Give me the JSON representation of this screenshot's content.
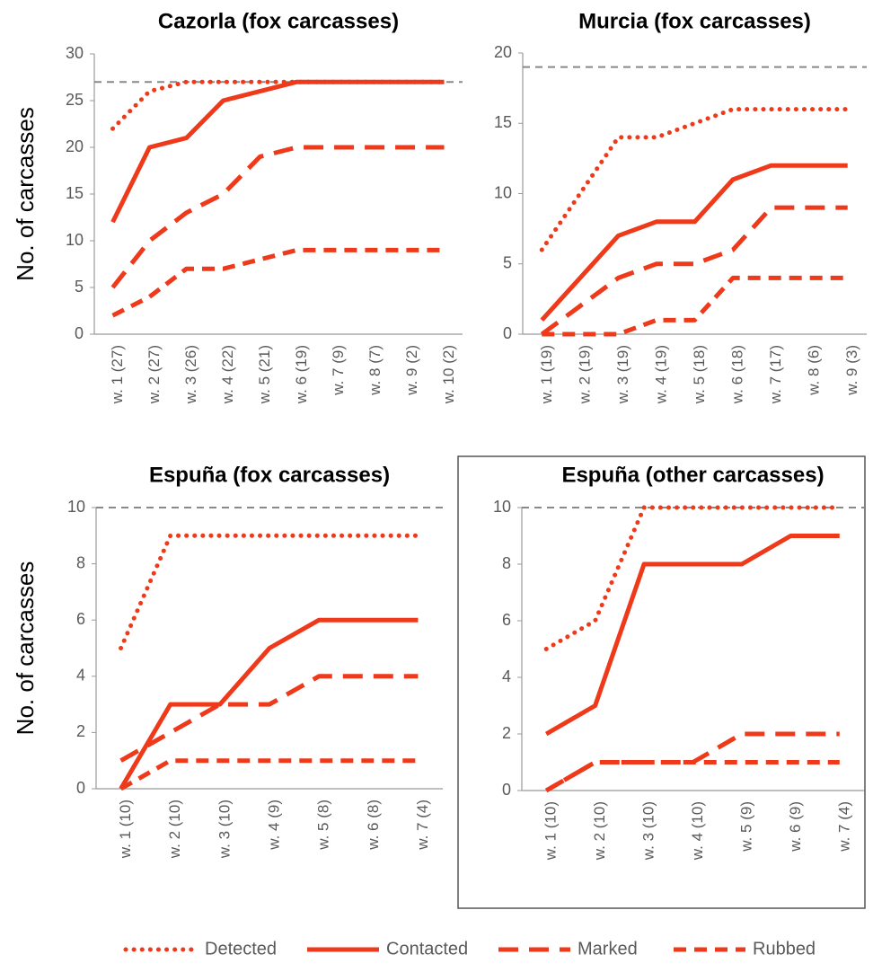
{
  "chart_data": [
    {
      "type": "line",
      "title": "Cazorla (fox carcasses)",
      "y_label": "No. of carcasses",
      "categories": [
        "w. 1  (27)",
        "w. 2 (27)",
        "w. 3 (26)",
        "w. 4 (22)",
        "w. 5 (21)",
        "w. 6 (19)",
        "w. 7 (9)",
        "w. 8 (7)",
        "w. 9 (2)",
        "w. 10 (2)"
      ],
      "ylim": [
        0,
        30
      ],
      "yticks": [
        0,
        5,
        10,
        15,
        20,
        25,
        30
      ],
      "reference_line": 27,
      "reference_color": "#888888",
      "series": [
        {
          "name": "Detected",
          "color": "#ee3a1a",
          "dash": "dotted",
          "values": [
            22,
            26,
            27,
            27,
            27,
            27,
            27,
            27,
            27,
            27
          ]
        },
        {
          "name": "Contacted",
          "color": "#ee3a1a",
          "dash": "solid",
          "values": [
            12,
            20,
            21,
            25,
            26,
            27,
            27,
            27,
            27,
            27
          ]
        },
        {
          "name": "Marked",
          "color": "#ee3a1a",
          "dash": "long-dash",
          "values": [
            5,
            10,
            13,
            15,
            19,
            20,
            20,
            20,
            20,
            20
          ]
        },
        {
          "name": "Rubbed",
          "color": "#ee3a1a",
          "dash": "dash",
          "values": [
            2,
            4,
            7,
            7,
            8,
            9,
            9,
            9,
            9,
            9
          ]
        }
      ]
    },
    {
      "type": "line",
      "title": "Murcia (fox carcasses)",
      "categories": [
        "w. 1 (19)",
        "w. 2 (19)",
        "w. 3 (19)",
        "w. 4 (19)",
        "w. 5 (18)",
        "w. 6 (18)",
        "w. 7 (17)",
        "w. 8 (6)",
        "w. 9 (3)"
      ],
      "ylim": [
        0,
        20
      ],
      "yticks": [
        0,
        5,
        10,
        15,
        20
      ],
      "reference_line": 19,
      "reference_color": "#888888",
      "series": [
        {
          "name": "Detected",
          "color": "#ee3a1a",
          "dash": "dotted",
          "values": [
            6,
            10,
            14,
            14,
            15,
            16,
            16,
            16,
            16
          ]
        },
        {
          "name": "Contacted",
          "color": "#ee3a1a",
          "dash": "solid",
          "values": [
            1,
            4,
            7,
            8,
            8,
            11,
            12,
            12,
            12
          ]
        },
        {
          "name": "Marked",
          "color": "#ee3a1a",
          "dash": "long-dash",
          "values": [
            0,
            2,
            4,
            5,
            5,
            6,
            9,
            9,
            9
          ]
        },
        {
          "name": "Rubbed",
          "color": "#ee3a1a",
          "dash": "dash",
          "values": [
            0,
            0,
            0,
            1,
            1,
            4,
            4,
            4,
            4
          ]
        }
      ]
    },
    {
      "type": "line",
      "title": "Espuña (fox carcasses)",
      "y_label": "No. of carcasses",
      "categories": [
        "w. 1 (10)",
        "w. 2 (10)",
        "w. 3 (10)",
        "w. 4 (9)",
        "w. 5 (8)",
        "w. 6 (8)",
        "w. 7 (4)"
      ],
      "ylim": [
        0,
        10
      ],
      "yticks": [
        0,
        2,
        4,
        6,
        8,
        10
      ],
      "reference_line": 10,
      "reference_color": "#888888",
      "series": [
        {
          "name": "Detected",
          "color": "#ee3a1a",
          "dash": "dotted",
          "values": [
            5,
            9,
            9,
            9,
            9,
            9,
            9
          ]
        },
        {
          "name": "Contacted",
          "color": "#ee3a1a",
          "dash": "solid",
          "values": [
            0,
            3,
            3,
            5,
            6,
            6,
            6
          ]
        },
        {
          "name": "Marked",
          "color": "#ee3a1a",
          "dash": "long-dash",
          "values": [
            1,
            2,
            3,
            3,
            4,
            4,
            4
          ]
        },
        {
          "name": "Rubbed",
          "color": "#ee3a1a",
          "dash": "dash",
          "values": [
            0,
            1,
            1,
            1,
            1,
            1,
            1
          ]
        }
      ]
    },
    {
      "type": "line",
      "title": "Espuña (other carcasses)",
      "categories": [
        "w. 1 (10)",
        "w. 2 (10)",
        "w. 3 (10)",
        "w. 4 (10)",
        "w. 5 (9)",
        "w. 6 (9)",
        "w. 7 (4)"
      ],
      "ylim": [
        0,
        10
      ],
      "yticks": [
        0,
        2,
        4,
        6,
        8,
        10
      ],
      "reference_line": 10,
      "reference_color": "#888888",
      "series": [
        {
          "name": "Detected",
          "color": "#ee3a1a",
          "dash": "dotted",
          "values": [
            5,
            6,
            10,
            10,
            10,
            10,
            10
          ]
        },
        {
          "name": "Contacted",
          "color": "#ee3a1a",
          "dash": "solid",
          "values": [
            2,
            3,
            8,
            8,
            8,
            9,
            9
          ]
        },
        {
          "name": "Marked",
          "color": "#ee3a1a",
          "dash": "long-dash",
          "values": [
            0,
            1,
            1,
            1,
            2,
            2,
            2
          ]
        },
        {
          "name": "Rubbed",
          "color": "#ee3a1a",
          "dash": "dash",
          "values": [
            0,
            1,
            1,
            1,
            1,
            1,
            1
          ]
        }
      ]
    }
  ]
}
